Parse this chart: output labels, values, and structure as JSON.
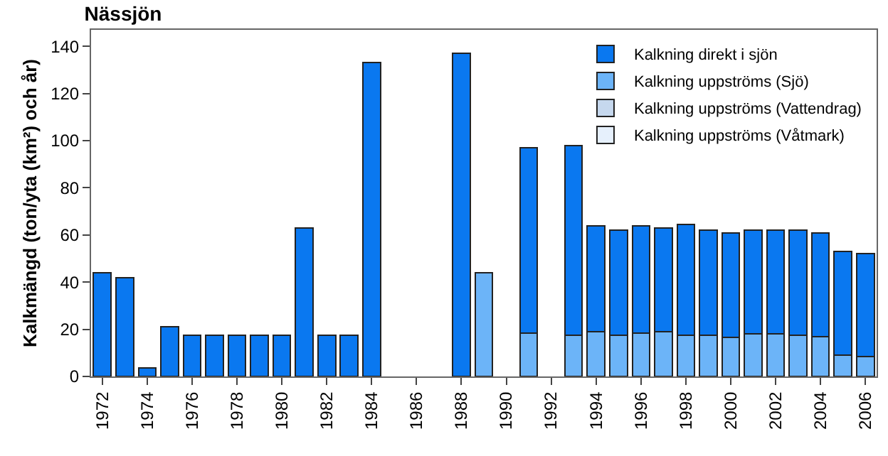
{
  "chart_data": {
    "type": "bar",
    "title": "Nässjön",
    "ylabel": "Kalkmängd (ton/yta (km²) och år)",
    "categories": [
      "1972",
      null,
      "1974",
      null,
      "1976",
      null,
      "1978",
      null,
      "1980",
      null,
      "1982",
      null,
      "1984",
      null,
      "1986",
      null,
      "1988",
      null,
      "1990",
      null,
      "1992",
      null,
      "1994",
      null,
      "1996",
      null,
      "1998",
      null,
      "2000",
      null,
      "2002",
      null,
      "2004",
      null,
      "2006"
    ],
    "stacked": true,
    "series": [
      {
        "name": "Kalkning uppströms (Sjö)",
        "color": "#6cb4f8",
        "values": [
          null,
          null,
          null,
          null,
          null,
          null,
          null,
          null,
          null,
          null,
          null,
          null,
          null,
          null,
          null,
          null,
          null,
          44,
          null,
          18.5,
          null,
          17.5,
          19,
          17.5,
          18.5,
          19,
          17.5,
          17.5,
          16.5,
          18,
          18,
          17.5,
          17,
          9,
          8.5
        ]
      },
      {
        "name": "Kalkning uppströms (Vattendrag)",
        "color": "#c6d8ee",
        "values": [
          null,
          null,
          null,
          null,
          null,
          null,
          null,
          null,
          null,
          null,
          null,
          null,
          null,
          null,
          null,
          null,
          null,
          null,
          null,
          null,
          null,
          null,
          null,
          null,
          null,
          null,
          null,
          null,
          null,
          null,
          null,
          null,
          null,
          null,
          null
        ]
      },
      {
        "name": "Kalkning uppströms (Våtmark)",
        "color": "#e6f0fc",
        "values": [
          null,
          null,
          null,
          null,
          null,
          null,
          null,
          null,
          null,
          null,
          null,
          null,
          null,
          null,
          null,
          null,
          null,
          null,
          null,
          null,
          null,
          null,
          null,
          null,
          null,
          null,
          null,
          null,
          null,
          null,
          null,
          null,
          null,
          null,
          null
        ]
      },
      {
        "name": "Kalkning direkt i sjön",
        "color": "#0a78f0",
        "values": [
          44,
          42,
          3.5,
          21,
          17.5,
          17.5,
          17.5,
          17.5,
          17.5,
          63,
          17.5,
          17.5,
          133,
          null,
          null,
          null,
          137,
          null,
          null,
          78.5,
          null,
          80.5,
          45,
          44.5,
          45.5,
          44,
          47,
          44.5,
          44.5,
          44,
          44,
          44.5,
          44,
          44,
          43.5
        ]
      }
    ],
    "ylim": [
      0,
      147
    ],
    "yticks": [
      0,
      20,
      40,
      60,
      80,
      100,
      120,
      140
    ],
    "grid": false,
    "legend": "top right"
  }
}
